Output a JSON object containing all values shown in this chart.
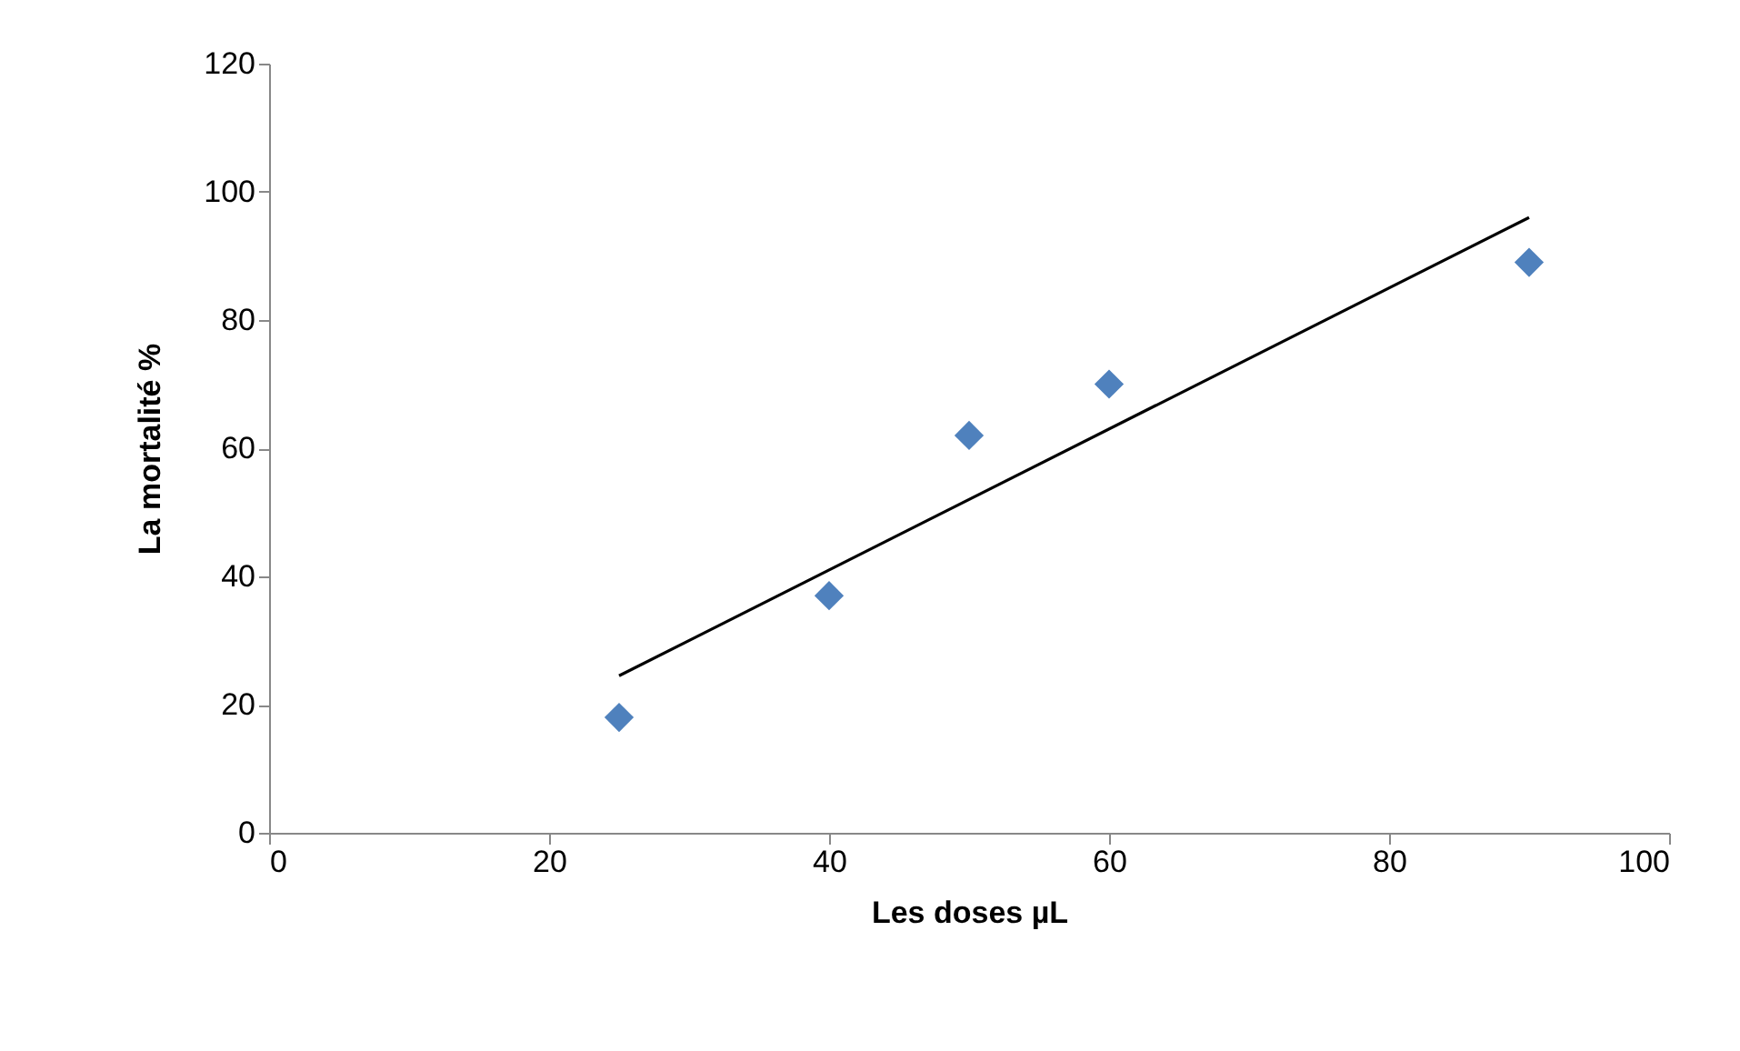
{
  "chart_data": {
    "type": "scatter",
    "xlabel": "Les doses µL",
    "ylabel": "La mortalité %",
    "series": [
      {
        "color": "#4f81bd",
        "marker": "diamond",
        "x": [
          25,
          40,
          50,
          60,
          90
        ],
        "values": [
          18,
          37,
          62,
          70,
          89
        ]
      },
      {
        "type": "line",
        "color": "#000000",
        "marker": "none",
        "x": [
          25,
          90
        ],
        "values": [
          24.5,
          96
        ]
      }
    ],
    "xlim": [
      0,
      100
    ],
    "xticks": [
      0,
      20,
      40,
      60,
      80,
      100
    ],
    "ylim": [
      0,
      120
    ],
    "yticks": [
      0,
      20,
      40,
      60,
      80,
      100,
      120
    ],
    "grid": false
  }
}
